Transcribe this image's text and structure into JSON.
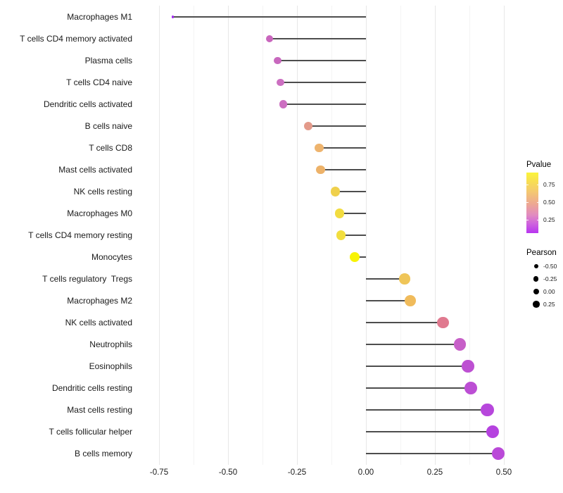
{
  "chart_data": {
    "type": "lollipop",
    "orientation": "horizontal",
    "title": "",
    "xlabel": "",
    "ylabel": "",
    "xlim": [
      -0.83,
      0.55
    ],
    "x_ticks": [
      -0.75,
      -0.5,
      -0.25,
      0.0,
      0.25,
      0.5
    ],
    "x_tick_labels": [
      "-0.75",
      "-0.50",
      "-0.25",
      "0.00",
      "0.25",
      "0.50"
    ],
    "x_minor_ticks": [
      -0.625,
      -0.375,
      -0.125,
      0.125,
      0.375
    ],
    "grid": true,
    "stem_color": "#4d4d4d",
    "points": [
      {
        "label": "Macrophages M1",
        "pearson": -0.7,
        "color": "#a32bef"
      },
      {
        "label": "T cells CD4 memory activated",
        "pearson": -0.35,
        "color": "#c966bd"
      },
      {
        "label": "Plasma cells",
        "pearson": -0.32,
        "color": "#c868be"
      },
      {
        "label": "T cells CD4 naive",
        "pearson": -0.31,
        "color": "#cc6fc1"
      },
      {
        "label": "Dendritic cells activated",
        "pearson": -0.3,
        "color": "#cc6fc1"
      },
      {
        "label": "B cells naive",
        "pearson": -0.21,
        "color": "#e39a8a"
      },
      {
        "label": "T cells CD8",
        "pearson": -0.17,
        "color": "#eeb46e"
      },
      {
        "label": "Mast cells activated",
        "pearson": -0.165,
        "color": "#edb269"
      },
      {
        "label": "NK cells resting",
        "pearson": -0.11,
        "color": "#efd04c"
      },
      {
        "label": "Macrophages M0",
        "pearson": -0.095,
        "color": "#f2dc40"
      },
      {
        "label": "T cells CD4 memory resting",
        "pearson": -0.09,
        "color": "#f2de3e"
      },
      {
        "label": "Monocytes",
        "pearson": -0.04,
        "color": "#f8f303"
      },
      {
        "label": "T cells regulatory  Tregs",
        "pearson": 0.14,
        "color": "#efc558"
      },
      {
        "label": "Macrophages M2",
        "pearson": 0.16,
        "color": "#f0bb5b"
      },
      {
        "label": "NK cells activated",
        "pearson": 0.28,
        "color": "#e0798f"
      },
      {
        "label": "Neutrophils",
        "pearson": 0.34,
        "color": "#c75fc8"
      },
      {
        "label": "Eosinophils",
        "pearson": 0.37,
        "color": "#bd50d2"
      },
      {
        "label": "Dendritic cells resting",
        "pearson": 0.38,
        "color": "#bc4ed4"
      },
      {
        "label": "Mast cells resting",
        "pearson": 0.44,
        "color": "#b747dc"
      },
      {
        "label": "T cells follicular helper",
        "pearson": 0.46,
        "color": "#b542df"
      },
      {
        "label": "B cells memory",
        "pearson": 0.48,
        "color": "#ba49d8"
      }
    ],
    "legend": {
      "color": {
        "title": "Pvalue",
        "tick_labels": [
          "0.75",
          "0.50",
          "0.25"
        ],
        "gradient_top_color": "#fbf53a",
        "gradient_bottom_color": "#b735f0"
      },
      "size": {
        "title": "Pearson",
        "entries": [
          {
            "label": "-0.50",
            "value": -0.5
          },
          {
            "label": "-0.25",
            "value": -0.25
          },
          {
            "label": "0.00",
            "value": 0.0
          },
          {
            "label": "0.25",
            "value": 0.25
          }
        ]
      }
    }
  }
}
